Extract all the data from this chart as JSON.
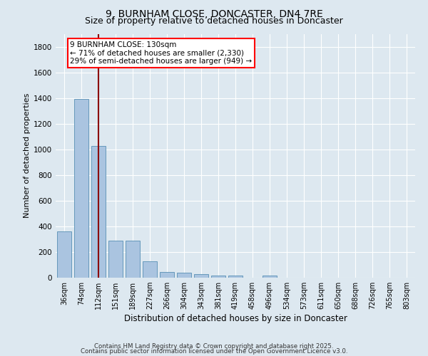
{
  "title": "9, BURNHAM CLOSE, DONCASTER, DN4 7RE",
  "subtitle": "Size of property relative to detached houses in Doncaster",
  "xlabel": "Distribution of detached houses by size in Doncaster",
  "ylabel": "Number of detached properties",
  "categories": [
    "36sqm",
    "74sqm",
    "112sqm",
    "151sqm",
    "189sqm",
    "227sqm",
    "266sqm",
    "304sqm",
    "343sqm",
    "381sqm",
    "419sqm",
    "458sqm",
    "496sqm",
    "534sqm",
    "573sqm",
    "611sqm",
    "650sqm",
    "688sqm",
    "726sqm",
    "765sqm",
    "803sqm"
  ],
  "values": [
    360,
    1390,
    1025,
    290,
    290,
    130,
    42,
    38,
    25,
    18,
    18,
    0,
    18,
    0,
    0,
    0,
    0,
    0,
    0,
    0,
    0
  ],
  "bar_color": "#aac4e0",
  "bar_edge_color": "#6699bb",
  "red_line_x": 2,
  "annotation_line1": "9 BURNHAM CLOSE: 130sqm",
  "annotation_line2": "← 71% of detached houses are smaller (2,330)",
  "annotation_line3": "29% of semi-detached houses are larger (949) →",
  "ylim": [
    0,
    1900
  ],
  "yticks": [
    0,
    200,
    400,
    600,
    800,
    1000,
    1200,
    1400,
    1600,
    1800
  ],
  "bg_color": "#dde8f0",
  "plot_bg_color": "#dde8f0",
  "grid_color": "#ffffff",
  "footer1": "Contains HM Land Registry data © Crown copyright and database right 2025.",
  "footer2": "Contains public sector information licensed under the Open Government Licence v3.0.",
  "title_fontsize": 10,
  "subtitle_fontsize": 9,
  "tick_fontsize": 7,
  "ylabel_fontsize": 8,
  "xlabel_fontsize": 8.5,
  "annotation_fontsize": 7.5
}
